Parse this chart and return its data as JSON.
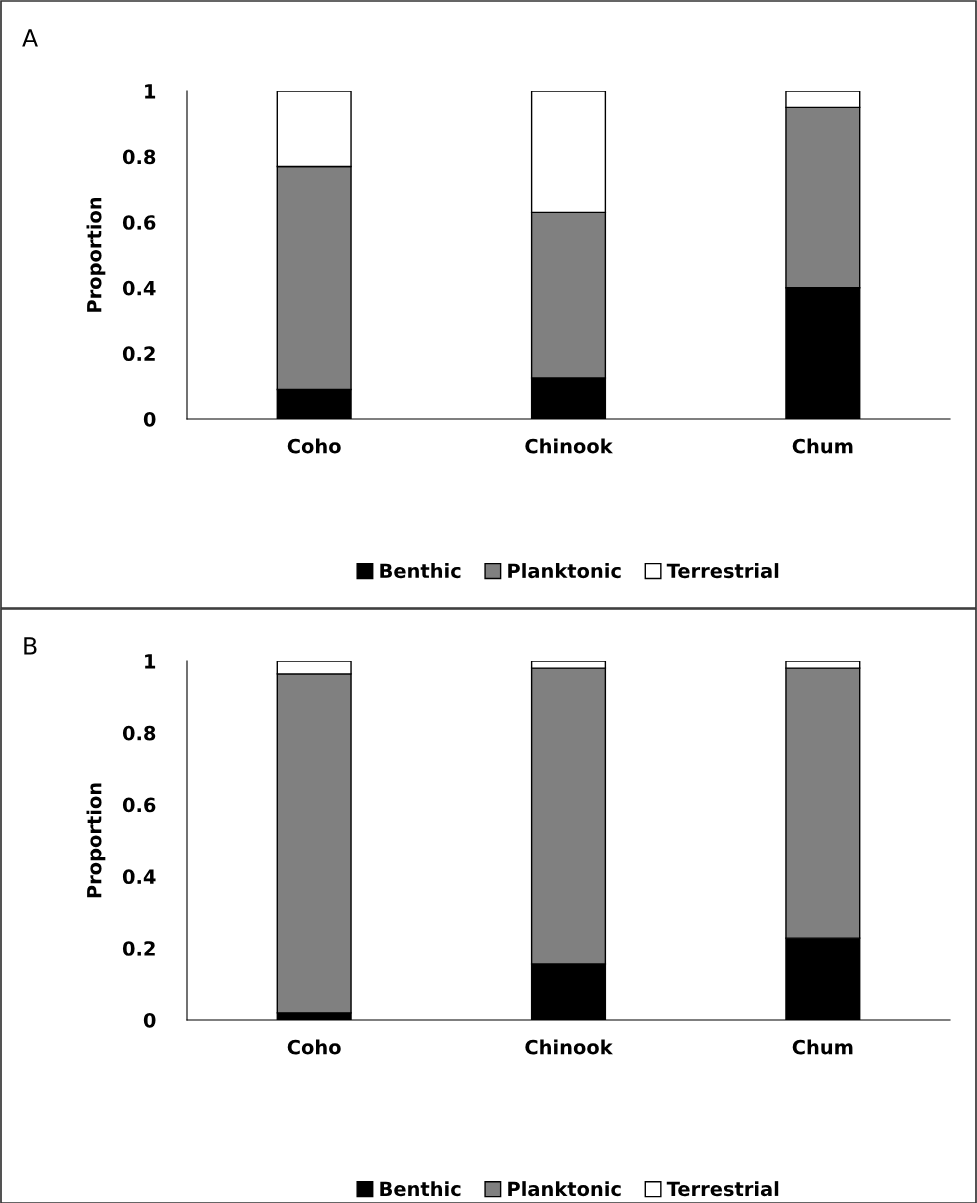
{
  "chart_data": [
    {
      "type": "bar",
      "title": "A",
      "ylabel": "Proportion",
      "categories": [
        "Coho",
        "Chinook",
        "Chum"
      ],
      "stacked": true,
      "ylim": [
        0,
        1
      ],
      "yticks": [
        0,
        0.2,
        0.4,
        0.6,
        0.8,
        1
      ],
      "grid": false,
      "legend": "bottom",
      "series": [
        {
          "name": "Benthic",
          "color": "#000000",
          "values": [
            0.09,
            0.125,
            0.4
          ]
        },
        {
          "name": "Planktonic",
          "color": "#808080",
          "values": [
            0.68,
            0.505,
            0.55
          ]
        },
        {
          "name": "Terrestrial",
          "color": "#ffffff",
          "values": [
            0.23,
            0.37,
            0.05
          ]
        }
      ]
    },
    {
      "type": "bar",
      "title": "B",
      "ylabel": "Proportion",
      "categories": [
        "Coho",
        "Chinook",
        "Chum"
      ],
      "stacked": true,
      "ylim": [
        0,
        1
      ],
      "yticks": [
        0,
        0.2,
        0.4,
        0.6,
        0.8,
        1
      ],
      "grid": false,
      "legend": "bottom",
      "series": [
        {
          "name": "Benthic",
          "color": "#000000",
          "values": [
            0.02,
            0.156,
            0.228
          ]
        },
        {
          "name": "Planktonic",
          "color": "#808080",
          "values": [
            0.944,
            0.824,
            0.752
          ]
        },
        {
          "name": "Terrestrial",
          "color": "#ffffff",
          "values": [
            0.036,
            0.02,
            0.02
          ]
        }
      ]
    }
  ]
}
